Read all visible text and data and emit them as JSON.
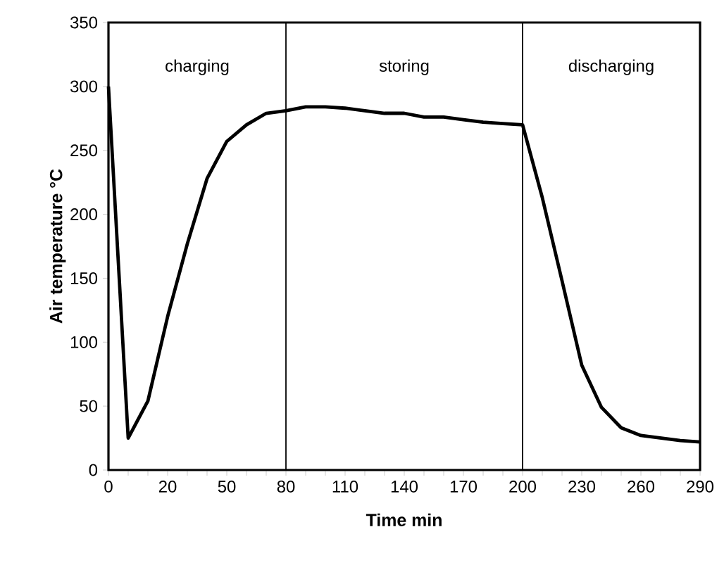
{
  "chart_data": {
    "type": "line",
    "xlabel": "Time min",
    "ylabel": "Air temperature   °C",
    "categories": [
      "0",
      null,
      null,
      "20",
      null,
      null,
      "50",
      null,
      null,
      "80",
      null,
      null,
      "110",
      null,
      null,
      "140",
      null,
      null,
      "170",
      null,
      null,
      "200",
      null,
      null,
      "230",
      null,
      null,
      "260",
      null,
      null,
      "290"
    ],
    "series": [
      {
        "color": "#000000",
        "values": [
          300,
          25,
          54,
          120,
          177,
          228,
          257,
          270,
          279,
          281,
          284,
          284,
          283,
          281,
          279,
          279,
          276,
          276,
          274,
          272,
          271,
          270,
          213,
          148,
          82,
          49,
          33,
          27,
          25,
          23,
          22
        ]
      }
    ],
    "ylim": [
      0,
      350
    ],
    "yticks": [
      0,
      50,
      100,
      150,
      200,
      250,
      300,
      350
    ],
    "ref_lines": [
      {
        "axis": "x",
        "value": "80",
        "color": "#000000"
      },
      {
        "axis": "x",
        "value": "200",
        "color": "#000000"
      }
    ],
    "annotations": [
      "charging",
      "storing",
      "discharging"
    ],
    "marker": "none",
    "line_style": "solid"
  }
}
